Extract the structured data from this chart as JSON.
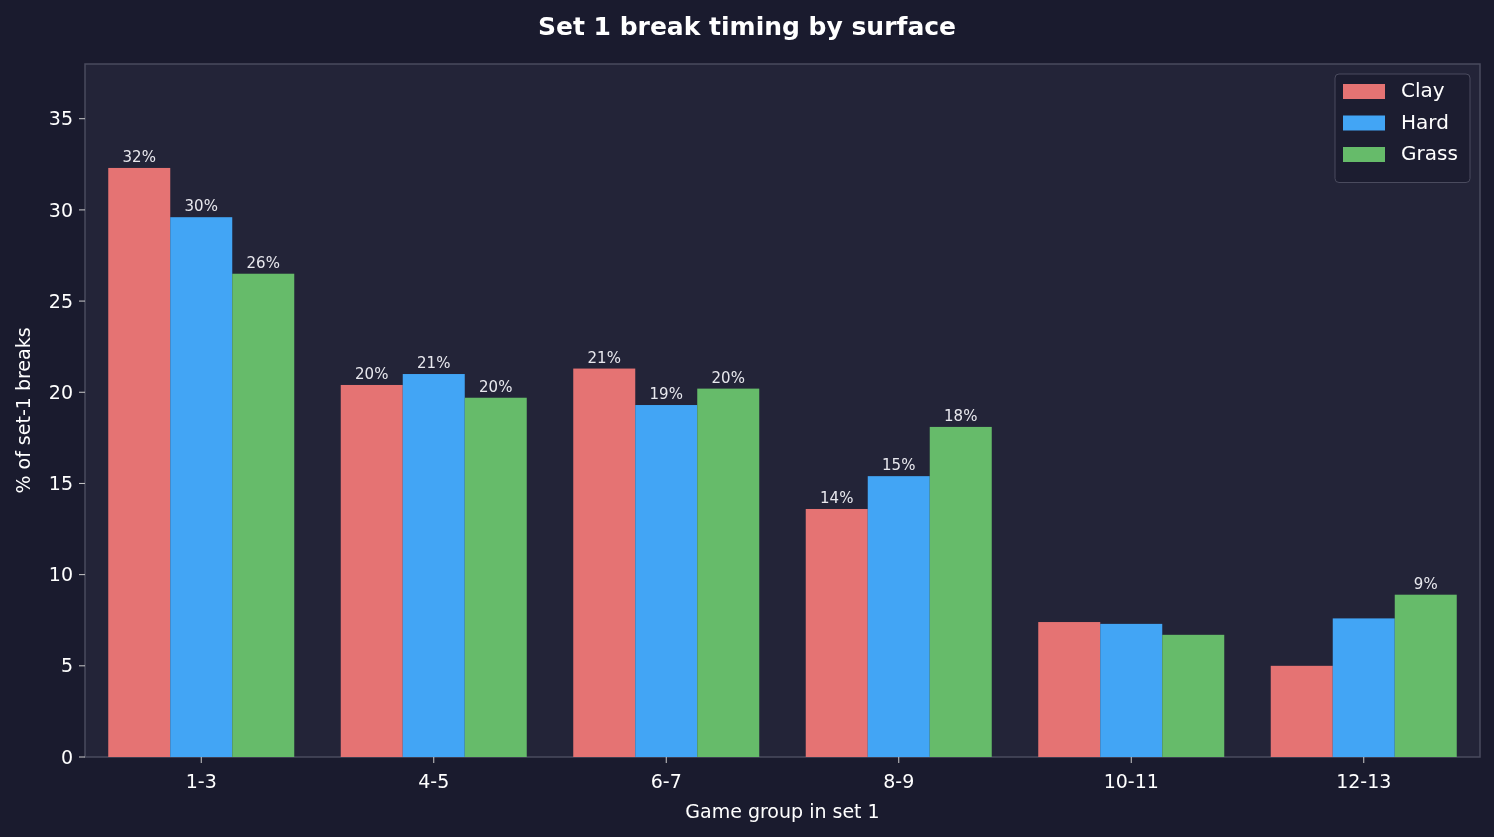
{
  "chart_data": {
    "type": "bar",
    "title": "Set 1 break timing by surface",
    "xlabel": "Game group in set 1",
    "ylabel": "% of set-1 breaks",
    "categories": [
      "1-3",
      "4-5",
      "6-7",
      "8-9",
      "10-11",
      "12-13"
    ],
    "series": [
      {
        "name": "Clay",
        "color": "#e57373",
        "values": [
          32.3,
          20.4,
          21.3,
          13.6,
          7.4,
          5.0
        ],
        "value_labels": [
          "32%",
          "20%",
          "21%",
          "14%",
          null,
          null
        ]
      },
      {
        "name": "Hard",
        "color": "#42a5f5",
        "values": [
          29.6,
          21.0,
          19.3,
          15.4,
          7.3,
          7.6
        ],
        "value_labels": [
          "30%",
          "21%",
          "19%",
          "15%",
          null,
          null
        ]
      },
      {
        "name": "Grass",
        "color": "#66bb6a",
        "values": [
          26.5,
          19.7,
          20.2,
          18.1,
          6.7,
          8.9
        ],
        "value_labels": [
          "26%",
          "20%",
          "20%",
          "18%",
          null,
          "9%"
        ]
      }
    ],
    "ylim": [
      0,
      38
    ],
    "yticks": [
      0,
      5,
      10,
      15,
      20,
      25,
      30,
      35
    ],
    "grid": false,
    "legend": "top right"
  }
}
